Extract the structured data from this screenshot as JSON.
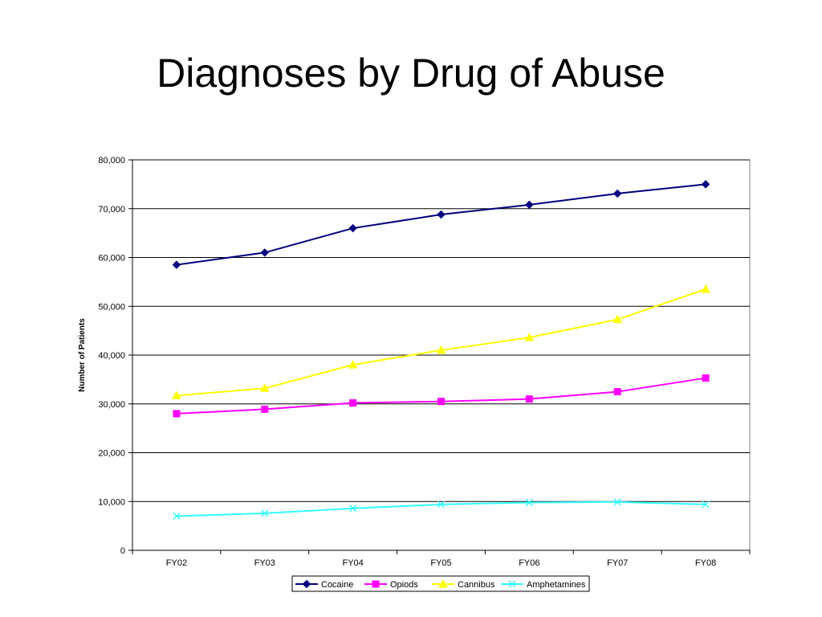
{
  "slide": {
    "title": "Diagnoses by Drug of Abuse"
  },
  "colors": {
    "Cocaine": "#000080",
    "Opiods": "#ff00ff",
    "Cannibus": "#ffff00",
    "Amphetamines": "#33ffff"
  },
  "chart_data": {
    "type": "line",
    "title": "",
    "xlabel": "",
    "ylabel": "Number of Patients",
    "categories": [
      "FY02",
      "FY03",
      "FY04",
      "FY05",
      "FY06",
      "FY07",
      "FY08"
    ],
    "ylim": [
      0,
      80000
    ],
    "yticks": [
      0,
      10000,
      20000,
      30000,
      40000,
      50000,
      60000,
      70000,
      80000
    ],
    "ytick_labels": [
      "0",
      "10,000",
      "20,000",
      "30,000",
      "40,000",
      "50,000",
      "60,000",
      "70,000",
      "80,000"
    ],
    "grid": true,
    "legend": "bottom",
    "series": [
      {
        "name": "Cocaine",
        "marker": "diamond",
        "values": [
          58500,
          61000,
          66000,
          68800,
          70800,
          73100,
          75000
        ]
      },
      {
        "name": "Opiods",
        "marker": "square",
        "values": [
          28000,
          28900,
          30200,
          30500,
          31000,
          32500,
          35300
        ]
      },
      {
        "name": "Cannibus",
        "marker": "triangle",
        "values": [
          31700,
          33200,
          38000,
          41000,
          43600,
          47300,
          53500
        ]
      },
      {
        "name": "Amphetamines",
        "marker": "x",
        "values": [
          7000,
          7600,
          8600,
          9400,
          9800,
          9900,
          9400
        ]
      }
    ]
  }
}
